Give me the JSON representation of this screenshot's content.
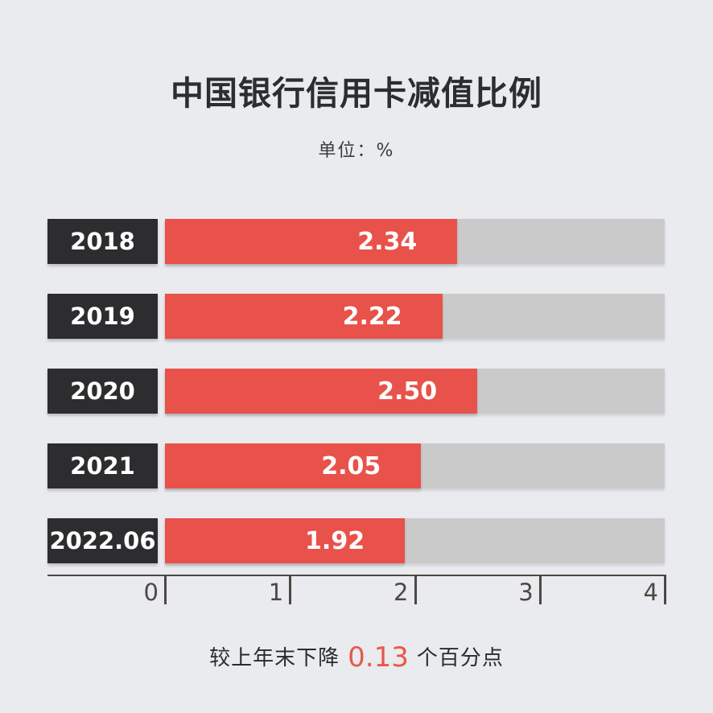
{
  "title": "中国银行信用卡减值比例",
  "unit_label": "单位：%",
  "footnote": {
    "prefix": "较上年末下降",
    "value": "0.13",
    "suffix": "个百分点"
  },
  "colors": {
    "background": "#E9EBEE",
    "bar_fill": "#E8524A",
    "bar_track": "#CACACB",
    "year_box": "#2D2D2F",
    "axis": "#4E4743",
    "title_text": "#2B2D31",
    "accent_number": "#E8584B"
  },
  "chart_data": {
    "type": "bar",
    "orientation": "horizontal",
    "title": "中国银行信用卡减值比例",
    "unit": "%",
    "categories": [
      "2018",
      "2019",
      "2020",
      "2021",
      "2022.06"
    ],
    "values": [
      2.34,
      2.22,
      2.5,
      2.05,
      1.92
    ],
    "value_labels": [
      "2.34",
      "2.22",
      "2.50",
      "2.05",
      "1.92"
    ],
    "xlim": [
      0,
      4
    ],
    "x_ticks": [
      "0",
      "1",
      "2",
      "3",
      "4"
    ],
    "grid": false,
    "legend": "none",
    "annotation": "较上年末下降 0.13 个百分点"
  }
}
